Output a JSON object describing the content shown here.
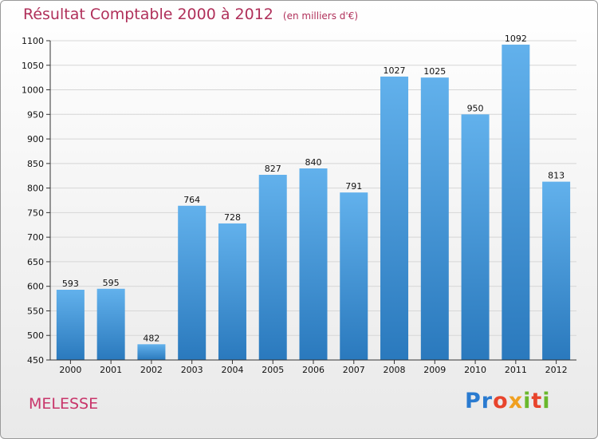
{
  "title": "Résultat Comptable 2000 à 2012",
  "title_unit": "(en milliers d'€)",
  "commune": "MELESSE",
  "logo": {
    "text": "Proxiti",
    "letters": [
      "P",
      "r",
      "o",
      "x",
      "i",
      "t",
      "i"
    ],
    "colors": [
      "#2a7bd0",
      "#2a7bd0",
      "#e8442c",
      "#f0a020",
      "#6ab82c",
      "#e8442c",
      "#6ab82c"
    ]
  },
  "colors": {
    "bar_top": "#62b1ec",
    "bar_bottom": "#2a79bd",
    "title": "#b0305a"
  },
  "chart_data": {
    "type": "bar",
    "title": "Résultat Comptable 2000 à 2012",
    "subtitle": "(en milliers d'€)",
    "categories": [
      "2000",
      "2001",
      "2002",
      "2003",
      "2004",
      "2005",
      "2006",
      "2007",
      "2008",
      "2009",
      "2010",
      "2011",
      "2012"
    ],
    "values": [
      593,
      595,
      482,
      764,
      728,
      827,
      840,
      791,
      1027,
      1025,
      950,
      1092,
      813
    ],
    "ylim": [
      450,
      1100
    ],
    "yticks": [
      450,
      500,
      550,
      600,
      650,
      700,
      750,
      800,
      850,
      900,
      950,
      1000,
      1050,
      1100
    ],
    "grid": true
  }
}
